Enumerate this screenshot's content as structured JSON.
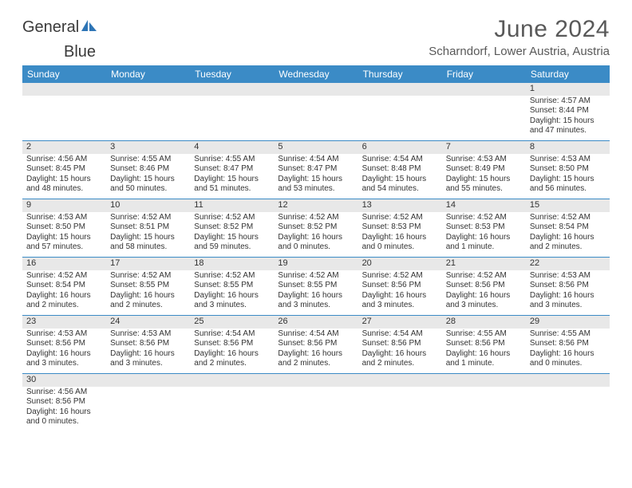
{
  "logo": {
    "text1": "General",
    "text2": "Blue",
    "text1_color": "#3a3a3a",
    "text2_color": "#2e75b6",
    "icon_color": "#2e75b6"
  },
  "title": "June 2024",
  "location": "Scharndorf, Lower Austria, Austria",
  "header_bg": "#3b8bc6",
  "header_fg": "#ffffff",
  "daynum_bg": "#e8e8e8",
  "row_border": "#3b8bc6",
  "day_names": [
    "Sunday",
    "Monday",
    "Tuesday",
    "Wednesday",
    "Thursday",
    "Friday",
    "Saturday"
  ],
  "weeks": [
    [
      null,
      null,
      null,
      null,
      null,
      null,
      {
        "n": "1",
        "sunrise": "Sunrise: 4:57 AM",
        "sunset": "Sunset: 8:44 PM",
        "day1": "Daylight: 15 hours",
        "day2": "and 47 minutes."
      }
    ],
    [
      {
        "n": "2",
        "sunrise": "Sunrise: 4:56 AM",
        "sunset": "Sunset: 8:45 PM",
        "day1": "Daylight: 15 hours",
        "day2": "and 48 minutes."
      },
      {
        "n": "3",
        "sunrise": "Sunrise: 4:55 AM",
        "sunset": "Sunset: 8:46 PM",
        "day1": "Daylight: 15 hours",
        "day2": "and 50 minutes."
      },
      {
        "n": "4",
        "sunrise": "Sunrise: 4:55 AM",
        "sunset": "Sunset: 8:47 PM",
        "day1": "Daylight: 15 hours",
        "day2": "and 51 minutes."
      },
      {
        "n": "5",
        "sunrise": "Sunrise: 4:54 AM",
        "sunset": "Sunset: 8:47 PM",
        "day1": "Daylight: 15 hours",
        "day2": "and 53 minutes."
      },
      {
        "n": "6",
        "sunrise": "Sunrise: 4:54 AM",
        "sunset": "Sunset: 8:48 PM",
        "day1": "Daylight: 15 hours",
        "day2": "and 54 minutes."
      },
      {
        "n": "7",
        "sunrise": "Sunrise: 4:53 AM",
        "sunset": "Sunset: 8:49 PM",
        "day1": "Daylight: 15 hours",
        "day2": "and 55 minutes."
      },
      {
        "n": "8",
        "sunrise": "Sunrise: 4:53 AM",
        "sunset": "Sunset: 8:50 PM",
        "day1": "Daylight: 15 hours",
        "day2": "and 56 minutes."
      }
    ],
    [
      {
        "n": "9",
        "sunrise": "Sunrise: 4:53 AM",
        "sunset": "Sunset: 8:50 PM",
        "day1": "Daylight: 15 hours",
        "day2": "and 57 minutes."
      },
      {
        "n": "10",
        "sunrise": "Sunrise: 4:52 AM",
        "sunset": "Sunset: 8:51 PM",
        "day1": "Daylight: 15 hours",
        "day2": "and 58 minutes."
      },
      {
        "n": "11",
        "sunrise": "Sunrise: 4:52 AM",
        "sunset": "Sunset: 8:52 PM",
        "day1": "Daylight: 15 hours",
        "day2": "and 59 minutes."
      },
      {
        "n": "12",
        "sunrise": "Sunrise: 4:52 AM",
        "sunset": "Sunset: 8:52 PM",
        "day1": "Daylight: 16 hours",
        "day2": "and 0 minutes."
      },
      {
        "n": "13",
        "sunrise": "Sunrise: 4:52 AM",
        "sunset": "Sunset: 8:53 PM",
        "day1": "Daylight: 16 hours",
        "day2": "and 0 minutes."
      },
      {
        "n": "14",
        "sunrise": "Sunrise: 4:52 AM",
        "sunset": "Sunset: 8:53 PM",
        "day1": "Daylight: 16 hours",
        "day2": "and 1 minute."
      },
      {
        "n": "15",
        "sunrise": "Sunrise: 4:52 AM",
        "sunset": "Sunset: 8:54 PM",
        "day1": "Daylight: 16 hours",
        "day2": "and 2 minutes."
      }
    ],
    [
      {
        "n": "16",
        "sunrise": "Sunrise: 4:52 AM",
        "sunset": "Sunset: 8:54 PM",
        "day1": "Daylight: 16 hours",
        "day2": "and 2 minutes."
      },
      {
        "n": "17",
        "sunrise": "Sunrise: 4:52 AM",
        "sunset": "Sunset: 8:55 PM",
        "day1": "Daylight: 16 hours",
        "day2": "and 2 minutes."
      },
      {
        "n": "18",
        "sunrise": "Sunrise: 4:52 AM",
        "sunset": "Sunset: 8:55 PM",
        "day1": "Daylight: 16 hours",
        "day2": "and 3 minutes."
      },
      {
        "n": "19",
        "sunrise": "Sunrise: 4:52 AM",
        "sunset": "Sunset: 8:55 PM",
        "day1": "Daylight: 16 hours",
        "day2": "and 3 minutes."
      },
      {
        "n": "20",
        "sunrise": "Sunrise: 4:52 AM",
        "sunset": "Sunset: 8:56 PM",
        "day1": "Daylight: 16 hours",
        "day2": "and 3 minutes."
      },
      {
        "n": "21",
        "sunrise": "Sunrise: 4:52 AM",
        "sunset": "Sunset: 8:56 PM",
        "day1": "Daylight: 16 hours",
        "day2": "and 3 minutes."
      },
      {
        "n": "22",
        "sunrise": "Sunrise: 4:53 AM",
        "sunset": "Sunset: 8:56 PM",
        "day1": "Daylight: 16 hours",
        "day2": "and 3 minutes."
      }
    ],
    [
      {
        "n": "23",
        "sunrise": "Sunrise: 4:53 AM",
        "sunset": "Sunset: 8:56 PM",
        "day1": "Daylight: 16 hours",
        "day2": "and 3 minutes."
      },
      {
        "n": "24",
        "sunrise": "Sunrise: 4:53 AM",
        "sunset": "Sunset: 8:56 PM",
        "day1": "Daylight: 16 hours",
        "day2": "and 3 minutes."
      },
      {
        "n": "25",
        "sunrise": "Sunrise: 4:54 AM",
        "sunset": "Sunset: 8:56 PM",
        "day1": "Daylight: 16 hours",
        "day2": "and 2 minutes."
      },
      {
        "n": "26",
        "sunrise": "Sunrise: 4:54 AM",
        "sunset": "Sunset: 8:56 PM",
        "day1": "Daylight: 16 hours",
        "day2": "and 2 minutes."
      },
      {
        "n": "27",
        "sunrise": "Sunrise: 4:54 AM",
        "sunset": "Sunset: 8:56 PM",
        "day1": "Daylight: 16 hours",
        "day2": "and 2 minutes."
      },
      {
        "n": "28",
        "sunrise": "Sunrise: 4:55 AM",
        "sunset": "Sunset: 8:56 PM",
        "day1": "Daylight: 16 hours",
        "day2": "and 1 minute."
      },
      {
        "n": "29",
        "sunrise": "Sunrise: 4:55 AM",
        "sunset": "Sunset: 8:56 PM",
        "day1": "Daylight: 16 hours",
        "day2": "and 0 minutes."
      }
    ],
    [
      {
        "n": "30",
        "sunrise": "Sunrise: 4:56 AM",
        "sunset": "Sunset: 8:56 PM",
        "day1": "Daylight: 16 hours",
        "day2": "and 0 minutes."
      },
      null,
      null,
      null,
      null,
      null,
      null
    ]
  ]
}
